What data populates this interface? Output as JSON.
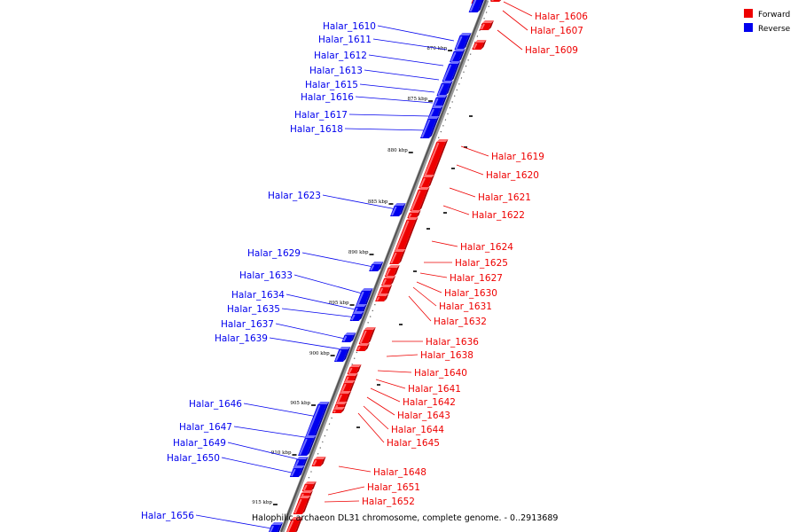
{
  "legend": {
    "items": [
      {
        "label": "Forward",
        "color": "#ee0000"
      },
      {
        "label": "Reverse",
        "color": "#0000ee"
      }
    ]
  },
  "caption": "Halophilic archaeon DL31 chromosome, complete genome. - 0..2913689",
  "ticks": [
    "870 kbp",
    "875 kbp",
    "880 kbp",
    "885 kbp",
    "890 kbp",
    "895 kbp",
    "900 kbp",
    "905 kbp",
    "910 kbp",
    "915 kbp"
  ],
  "genes": [
    {
      "name": "Halar_1606",
      "strand": "forward"
    },
    {
      "name": "Halar_1607",
      "strand": "forward"
    },
    {
      "name": "Halar_1609",
      "strand": "forward"
    },
    {
      "name": "Halar_1610",
      "strand": "reverse"
    },
    {
      "name": "Halar_1611",
      "strand": "reverse"
    },
    {
      "name": "Halar_1612",
      "strand": "reverse"
    },
    {
      "name": "Halar_1613",
      "strand": "reverse"
    },
    {
      "name": "Halar_1615",
      "strand": "reverse"
    },
    {
      "name": "Halar_1616",
      "strand": "reverse"
    },
    {
      "name": "Halar_1617",
      "strand": "reverse"
    },
    {
      "name": "Halar_1618",
      "strand": "reverse"
    },
    {
      "name": "Halar_1619",
      "strand": "forward"
    },
    {
      "name": "Halar_1620",
      "strand": "forward"
    },
    {
      "name": "Halar_1621",
      "strand": "forward"
    },
    {
      "name": "Halar_1622",
      "strand": "forward"
    },
    {
      "name": "Halar_1623",
      "strand": "reverse"
    },
    {
      "name": "Halar_1624",
      "strand": "forward"
    },
    {
      "name": "Halar_1625",
      "strand": "forward"
    },
    {
      "name": "Halar_1627",
      "strand": "forward"
    },
    {
      "name": "Halar_1629",
      "strand": "reverse"
    },
    {
      "name": "Halar_1630",
      "strand": "forward"
    },
    {
      "name": "Halar_1631",
      "strand": "forward"
    },
    {
      "name": "Halar_1632",
      "strand": "forward"
    },
    {
      "name": "Halar_1633",
      "strand": "reverse"
    },
    {
      "name": "Halar_1634",
      "strand": "reverse"
    },
    {
      "name": "Halar_1635",
      "strand": "reverse"
    },
    {
      "name": "Halar_1636",
      "strand": "forward"
    },
    {
      "name": "Halar_1637",
      "strand": "reverse"
    },
    {
      "name": "Halar_1638",
      "strand": "forward"
    },
    {
      "name": "Halar_1639",
      "strand": "reverse"
    },
    {
      "name": "Halar_1640",
      "strand": "forward"
    },
    {
      "name": "Halar_1641",
      "strand": "forward"
    },
    {
      "name": "Halar_1642",
      "strand": "forward"
    },
    {
      "name": "Halar_1643",
      "strand": "forward"
    },
    {
      "name": "Halar_1644",
      "strand": "forward"
    },
    {
      "name": "Halar_1645",
      "strand": "forward"
    },
    {
      "name": "Halar_1646",
      "strand": "reverse"
    },
    {
      "name": "Halar_1647",
      "strand": "reverse"
    },
    {
      "name": "Halar_1648",
      "strand": "forward"
    },
    {
      "name": "Halar_1649",
      "strand": "reverse"
    },
    {
      "name": "Halar_1650",
      "strand": "reverse"
    },
    {
      "name": "Halar_1651",
      "strand": "forward"
    },
    {
      "name": "Halar_1652",
      "strand": "forward"
    },
    {
      "name": "Halar_1656",
      "strand": "reverse"
    }
  ]
}
